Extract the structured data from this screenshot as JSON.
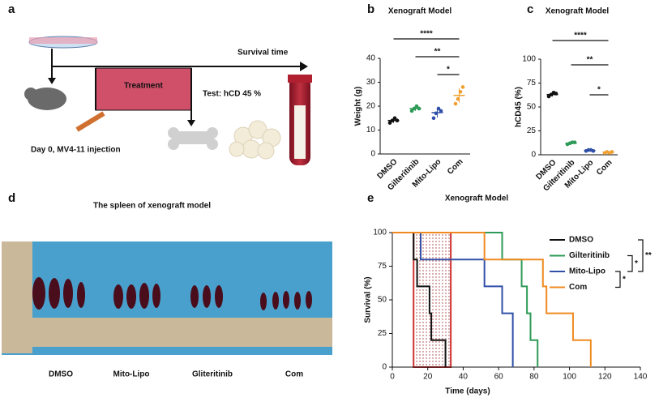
{
  "panel_labels": [
    "a",
    "b",
    "c",
    "d",
    "e"
  ],
  "panel_a": {
    "texts": [
      "Survival time",
      "Treatment",
      "Test: hCD 45 %",
      "Day 0, MV4-11 injection"
    ]
  },
  "panel_d": {
    "title": "The spleen of xenograft model",
    "groups": [
      "DMSO",
      "Mito-Lipo",
      "Gliteritinib",
      "Com"
    ]
  },
  "chart_data": [
    {
      "type": "dot",
      "title": "Xenograft Model",
      "ylabel": "Weight (g)",
      "categories": [
        "DMSO",
        "Gilteritinib",
        "Mito-Lipo",
        "Com"
      ],
      "colors": [
        "#111111",
        "#2e9a57",
        "#3050a8",
        "#f0a030"
      ],
      "values": [
        [
          13,
          14,
          15,
          14
        ],
        [
          18,
          19,
          20,
          19
        ],
        [
          15,
          17,
          19,
          18
        ],
        [
          21,
          23,
          26,
          28
        ]
      ],
      "means": [
        14,
        19,
        17.3,
        24.5
      ],
      "errors": [
        1,
        1,
        2,
        3
      ],
      "ylim": [
        0,
        40
      ],
      "yticks": [
        0,
        10,
        20,
        30,
        40
      ],
      "comparisons": [
        {
          "from": "DMSO",
          "to": "Com",
          "label": "****"
        },
        {
          "from": "Gilteritinib",
          "to": "Com",
          "label": "**"
        },
        {
          "from": "Mito-Lipo",
          "to": "Com",
          "label": "*"
        }
      ]
    },
    {
      "type": "dot",
      "title": "Xenograft Model",
      "ylabel": "hCD45 (%)",
      "categories": [
        "DMSO",
        "Gilteritinib",
        "Mito-Lipo",
        "Com"
      ],
      "colors": [
        "#111111",
        "#2e9a57",
        "#3050a8",
        "#f0a030"
      ],
      "values": [
        [
          61,
          63,
          65,
          64
        ],
        [
          11,
          12,
          13,
          13
        ],
        [
          4,
          5,
          5,
          4
        ],
        [
          2,
          3,
          2,
          3
        ]
      ],
      "means": [
        63,
        12,
        4.5,
        2.5
      ],
      "errors": [
        2,
        1,
        0.6,
        0.6
      ],
      "ylim": [
        0,
        100
      ],
      "yticks": [
        0,
        25,
        50,
        75,
        100
      ],
      "comparisons": [
        {
          "from": "DMSO",
          "to": "Com",
          "label": "****"
        },
        {
          "from": "Gilteritinib",
          "to": "Com",
          "label": "**"
        },
        {
          "from": "Mito-Lipo",
          "to": "Com",
          "label": "*"
        }
      ]
    },
    {
      "type": "step",
      "title": "Xenograft Model",
      "xlabel": "Time  (days)",
      "ylabel": "Survival (%)",
      "series": [
        {
          "name": "DMSO",
          "color": "#111111",
          "x": [
            0,
            12,
            14,
            21,
            22,
            30
          ],
          "values": [
            100,
            80,
            60,
            40,
            20,
            0
          ]
        },
        {
          "name": "Gilteritinib",
          "color": "#2e9a57",
          "x": [
            0,
            62,
            73,
            76,
            78,
            82
          ],
          "values": [
            100,
            80,
            60,
            40,
            20,
            0
          ]
        },
        {
          "name": "Mito-Lipo",
          "color": "#3050a8",
          "x": [
            0,
            16,
            52,
            62,
            68
          ],
          "values": [
            100,
            80,
            60,
            40,
            0
          ]
        },
        {
          "name": "Com",
          "color": "#f08a20",
          "x": [
            0,
            52,
            85,
            87,
            102,
            112
          ],
          "values": [
            100,
            80,
            60,
            40,
            20,
            0
          ]
        }
      ],
      "shaded_interval": [
        12,
        33
      ],
      "xlim": [
        0,
        140
      ],
      "xticks": [
        0,
        20,
        40,
        60,
        80,
        100,
        120,
        140
      ],
      "ylim": [
        0,
        100
      ],
      "yticks": [
        0,
        25,
        50,
        75,
        100
      ],
      "comparisons": [
        {
          "from": "Mito-Lipo",
          "to": "Com",
          "label": "*"
        },
        {
          "from": "Gilteritinib",
          "to": "Mito-Lipo",
          "label": "*"
        },
        {
          "from": "DMSO",
          "to": "Mito-Lipo",
          "label": "**"
        }
      ]
    }
  ]
}
